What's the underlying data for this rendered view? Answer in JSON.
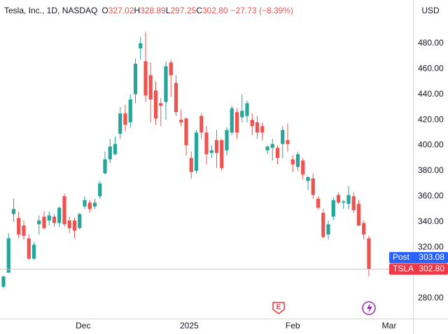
{
  "chart_data": {
    "type": "candlestick",
    "title": "Tesla, Inc., 1D, NASDAQ",
    "ohlc_legend": [
      {
        "key": "O",
        "value": "327.02"
      },
      {
        "key": "H",
        "value": "328.89"
      },
      {
        "key": "L",
        "value": "297.25"
      },
      {
        "key": "C",
        "value": "302.80"
      }
    ],
    "change": "−27.73 (−8.39%)",
    "currency": "USD",
    "up_color": "#26a69a",
    "down_color": "#ef5350",
    "x": [
      0,
      1,
      2,
      3,
      4,
      5,
      6,
      7,
      8,
      9,
      10,
      11,
      12,
      13,
      14,
      15,
      16,
      17,
      18,
      19,
      20,
      21,
      22,
      23,
      24,
      25,
      26,
      27,
      28,
      29,
      30,
      31,
      32,
      33,
      34,
      35,
      36,
      37,
      38,
      39,
      40,
      41,
      42,
      43,
      44,
      45,
      46,
      47,
      48,
      49,
      50,
      51,
      52,
      53,
      54,
      55,
      56,
      57,
      58,
      59,
      60,
      61,
      62,
      63,
      64,
      65,
      66,
      67,
      68,
      69,
      70,
      71,
      72
    ],
    "open": [
      289,
      300,
      346,
      343,
      337,
      327,
      311,
      338,
      344,
      341,
      344,
      339,
      360,
      341,
      341,
      335,
      352,
      355,
      352,
      360,
      378,
      389,
      393,
      409,
      425,
      418,
      440,
      476,
      466,
      455,
      443,
      433,
      434,
      465,
      449,
      420,
      421,
      390,
      380,
      423,
      410,
      394,
      404,
      404,
      396,
      410,
      426,
      422,
      423,
      420,
      418,
      415,
      396,
      398,
      398,
      401,
      404,
      389,
      383,
      388,
      372,
      374,
      358,
      347,
      330,
      344,
      361,
      355,
      354,
      360,
      354,
      339,
      327.02
    ],
    "high": [
      298,
      331,
      358,
      348,
      341,
      330,
      324,
      345,
      348,
      348,
      346,
      352,
      362,
      344,
      343,
      347,
      360,
      357,
      358,
      372,
      395,
      405,
      407,
      430,
      432,
      440,
      468,
      485,
      489,
      465,
      450,
      437,
      466,
      467,
      455,
      428,
      422,
      395,
      412,
      425,
      415,
      400,
      412,
      405,
      414,
      431,
      429,
      440,
      435,
      425,
      423,
      418,
      400,
      405,
      400,
      415,
      417,
      392,
      395,
      390,
      376,
      378,
      360,
      350,
      341,
      359,
      363,
      357,
      368,
      363,
      357,
      341,
      328.89
    ],
    "low": [
      288,
      300,
      340,
      327,
      326,
      310,
      310,
      330,
      334,
      337,
      336,
      336,
      336,
      331,
      327,
      334,
      350,
      347,
      350,
      358,
      377,
      386,
      392,
      405,
      411,
      414,
      433,
      467,
      434,
      418,
      416,
      415,
      420,
      438,
      423,
      415,
      392,
      374,
      378,
      405,
      385,
      390,
      382,
      380,
      392,
      408,
      405,
      418,
      418,
      408,
      405,
      404,
      393,
      388,
      385,
      390,
      395,
      379,
      380,
      373,
      365,
      358,
      350,
      327,
      326,
      341,
      354,
      350,
      350,
      347,
      337,
      326,
      297.25
    ],
    "close": [
      297,
      327,
      350,
      330,
      329,
      311,
      322,
      341,
      335,
      345,
      339,
      351,
      338,
      335,
      333,
      346,
      357,
      350,
      355,
      370,
      389,
      399,
      401,
      425,
      416,
      436,
      464,
      480,
      439,
      436,
      421,
      431,
      462,
      455,
      426,
      418,
      400,
      379,
      410,
      410,
      393,
      396,
      394,
      382,
      412,
      429,
      410,
      427,
      433,
      415,
      410,
      410,
      399,
      401,
      390,
      412,
      401,
      385,
      393,
      377,
      375,
      361,
      351,
      328,
      338,
      357,
      355,
      356,
      361,
      349,
      337,
      330,
      302.8
    ],
    "xlim": [
      -0.69,
      80.69
    ],
    "xticks": [
      {
        "value": 15.7,
        "label": "Dec"
      },
      {
        "value": 36.6,
        "label": "2025"
      },
      {
        "value": 57,
        "label": "Feb"
      },
      {
        "value": 76,
        "label": "Mar"
      }
    ],
    "ylim": [
      264,
      514
    ],
    "yticks": [
      {
        "value": 280,
        "label": "280.00"
      },
      {
        "value": 320,
        "label": "320.00"
      },
      {
        "value": 340,
        "label": "340.00"
      },
      {
        "value": 360,
        "label": "360.00"
      },
      {
        "value": 380,
        "label": "380.00"
      },
      {
        "value": 400,
        "label": "400.00"
      },
      {
        "value": 420,
        "label": "420.00"
      },
      {
        "value": 440,
        "label": "440.00"
      },
      {
        "value": 460,
        "label": "460.00"
      },
      {
        "value": 480,
        "label": "480.00"
      }
    ],
    "price_tags": [
      {
        "name": "Post",
        "value": 303.08,
        "label": "303.08",
        "color": "#2962ff"
      },
      {
        "name": "TSLA",
        "value": 302.8,
        "label": "302.80",
        "color": "#f23645"
      }
    ],
    "grid": false
  }
}
